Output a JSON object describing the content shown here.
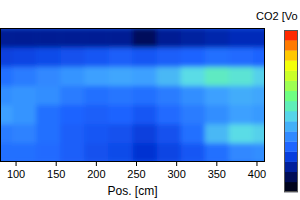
{
  "chart_data": {
    "type": "contour",
    "xlabel": "Pos. [cm]",
    "x": [
      80,
      110,
      140,
      170,
      200,
      230,
      260,
      290,
      320,
      350,
      380,
      410
    ],
    "y": [
      0,
      1,
      2,
      3,
      4,
      5,
      6
    ],
    "z": [
      [
        3.0,
        3.0,
        2.9,
        2.7,
        2.5,
        2.4,
        2.0,
        2.3,
        2.6,
        3.0,
        3.4,
        3.5
      ],
      [
        3.2,
        3.3,
        3.0,
        2.7,
        2.6,
        2.5,
        2.2,
        2.5,
        3.0,
        4.2,
        4.8,
        4.6
      ],
      [
        3.8,
        3.6,
        3.0,
        2.8,
        2.7,
        2.8,
        2.6,
        2.9,
        3.2,
        3.5,
        3.8,
        3.7
      ],
      [
        3.5,
        3.6,
        3.5,
        3.2,
        3.0,
        3.1,
        3.0,
        3.2,
        3.5,
        3.8,
        4.0,
        3.9
      ],
      [
        3.0,
        3.2,
        3.4,
        3.6,
        3.8,
        3.9,
        3.8,
        4.2,
        4.8,
        5.2,
        5.0,
        4.6
      ],
      [
        2.2,
        2.3,
        2.4,
        2.5,
        2.6,
        2.7,
        2.6,
        2.7,
        2.8,
        3.0,
        2.9,
        2.8
      ],
      [
        1.5,
        1.5,
        1.5,
        1.5,
        1.5,
        1.5,
        1.0,
        1.5,
        1.6,
        1.7,
        1.8,
        1.8
      ]
    ],
    "xlim": [
      80,
      410
    ],
    "ylim": [
      -0.5,
      6.5
    ],
    "xticks": [
      100,
      150,
      200,
      250,
      300,
      350,
      400
    ],
    "tick_labels": "x",
    "colorbar": {
      "label": "CO2 [Vo",
      "range": [
        0,
        10
      ]
    }
  }
}
